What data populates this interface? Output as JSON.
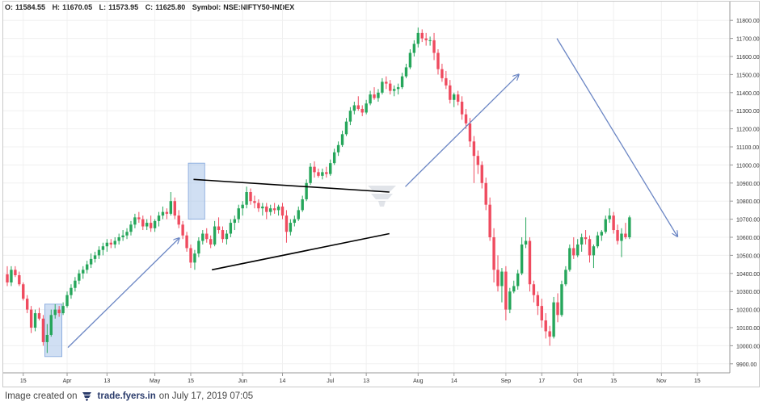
{
  "header": {
    "open_label": "O:",
    "open": "11584.55",
    "high_label": "H:",
    "high": "11670.05",
    "low_label": "L:",
    "low": "11573.95",
    "close_label": "C:",
    "close": "11625.80",
    "symbol_label": "Symbol:",
    "symbol": "NSE:NIFTY50-INDEX"
  },
  "footer": {
    "prefix": "Image created on",
    "brand": "trade.fyers.in",
    "suffix": "on July 17, 2019 07:05"
  },
  "colors": {
    "up": "#26a65b",
    "down": "#ef4b5f",
    "arrow": "#6b86c4",
    "trendline": "#000000",
    "highlight": "#a9c4ea"
  },
  "chart_data": {
    "type": "candlestick",
    "title": "",
    "xlabel": "",
    "ylabel": "",
    "ylim": [
      9850,
      11850
    ],
    "y_ticks": [
      "11800.00",
      "11700.00",
      "11600.00",
      "11500.00",
      "11400.00",
      "11300.00",
      "11200.00",
      "11100.00",
      "11000.00",
      "10900.00",
      "10800.00",
      "10700.00",
      "10600.00",
      "10500.00",
      "10400.00",
      "10300.00",
      "10200.00",
      "10100.00",
      "10000.00",
      "9900.00"
    ],
    "x_ticks": [
      {
        "label": "15",
        "i": 4
      },
      {
        "label": "Apr",
        "i": 15
      },
      {
        "label": "13",
        "i": 25
      },
      {
        "label": "May",
        "i": 37
      },
      {
        "label": "15",
        "i": 46
      },
      {
        "label": "Jun",
        "i": 59
      },
      {
        "label": "14",
        "i": 69
      },
      {
        "label": "Jul",
        "i": 81
      },
      {
        "label": "13",
        "i": 90
      },
      {
        "label": "Aug",
        "i": 103
      },
      {
        "label": "14",
        "i": 112
      },
      {
        "label": "Sep",
        "i": 125
      },
      {
        "label": "17",
        "i": 134
      },
      {
        "label": "Oct",
        "i": 143
      },
      {
        "label": "15",
        "i": 152
      },
      {
        "label": "Nov",
        "i": 164
      },
      {
        "label": "15",
        "i": 173
      }
    ],
    "candles": [
      [
        10395,
        10440,
        10330,
        10350
      ],
      [
        10350,
        10440,
        10330,
        10420
      ],
      [
        10420,
        10440,
        10380,
        10390
      ],
      [
        10390,
        10410,
        10330,
        10340
      ],
      [
        10340,
        10350,
        10250,
        10260
      ],
      [
        10260,
        10280,
        10180,
        10200
      ],
      [
        10200,
        10220,
        10070,
        10100
      ],
      [
        10100,
        10200,
        10080,
        10180
      ],
      [
        10180,
        10210,
        10140,
        10150
      ],
      [
        10150,
        10170,
        10000,
        10020
      ],
      [
        10020,
        10120,
        9960,
        10060
      ],
      [
        10060,
        10200,
        10050,
        10170
      ],
      [
        10170,
        10230,
        10150,
        10200
      ],
      [
        10200,
        10220,
        10160,
        10180
      ],
      [
        10180,
        10240,
        10170,
        10220
      ],
      [
        10220,
        10300,
        10210,
        10280
      ],
      [
        10280,
        10340,
        10260,
        10320
      ],
      [
        10320,
        10380,
        10300,
        10360
      ],
      [
        10360,
        10420,
        10340,
        10400
      ],
      [
        10400,
        10440,
        10370,
        10420
      ],
      [
        10420,
        10470,
        10400,
        10450
      ],
      [
        10450,
        10510,
        10430,
        10480
      ],
      [
        10480,
        10520,
        10460,
        10500
      ],
      [
        10500,
        10550,
        10480,
        10530
      ],
      [
        10530,
        10570,
        10500,
        10550
      ],
      [
        10550,
        10590,
        10520,
        10570
      ],
      [
        10570,
        10590,
        10540,
        10560
      ],
      [
        10560,
        10600,
        10540,
        10580
      ],
      [
        10580,
        10620,
        10560,
        10600
      ],
      [
        10600,
        10640,
        10580,
        10610
      ],
      [
        10610,
        10650,
        10590,
        10630
      ],
      [
        10630,
        10690,
        10610,
        10670
      ],
      [
        10670,
        10730,
        10650,
        10710
      ],
      [
        10710,
        10740,
        10680,
        10700
      ],
      [
        10700,
        10720,
        10640,
        10660
      ],
      [
        10660,
        10700,
        10640,
        10680
      ],
      [
        10680,
        10720,
        10630,
        10650
      ],
      [
        10650,
        10700,
        10630,
        10690
      ],
      [
        10690,
        10740,
        10660,
        10720
      ],
      [
        10720,
        10770,
        10700,
        10740
      ],
      [
        10740,
        10760,
        10700,
        10730
      ],
      [
        10730,
        10850,
        10720,
        10800
      ],
      [
        10800,
        10820,
        10700,
        10720
      ],
      [
        10720,
        10750,
        10650,
        10670
      ],
      [
        10670,
        10690,
        10590,
        10610
      ],
      [
        10610,
        10630,
        10520,
        10540
      ],
      [
        10540,
        10560,
        10430,
        10460
      ],
      [
        10460,
        10530,
        10420,
        10510
      ],
      [
        10510,
        10600,
        10490,
        10580
      ],
      [
        10580,
        10640,
        10560,
        10620
      ],
      [
        10620,
        10650,
        10570,
        10590
      ],
      [
        10590,
        10610,
        10540,
        10560
      ],
      [
        10560,
        10690,
        10550,
        10660
      ],
      [
        10660,
        10710,
        10620,
        10640
      ],
      [
        10640,
        10660,
        10570,
        10590
      ],
      [
        10590,
        10640,
        10560,
        10620
      ],
      [
        10620,
        10700,
        10600,
        10680
      ],
      [
        10680,
        10720,
        10640,
        10700
      ],
      [
        10700,
        10780,
        10680,
        10760
      ],
      [
        10760,
        10800,
        10720,
        10780
      ],
      [
        10780,
        10880,
        10760,
        10850
      ],
      [
        10850,
        10870,
        10780,
        10800
      ],
      [
        10800,
        10830,
        10760,
        10790
      ],
      [
        10790,
        10810,
        10740,
        10760
      ],
      [
        10760,
        10790,
        10720,
        10770
      ],
      [
        10770,
        10790,
        10700,
        10740
      ],
      [
        10740,
        10780,
        10720,
        10760
      ],
      [
        10760,
        10790,
        10730,
        10750
      ],
      [
        10750,
        10780,
        10720,
        10770
      ],
      [
        10770,
        10790,
        10700,
        10720
      ],
      [
        10720,
        10750,
        10570,
        10630
      ],
      [
        10630,
        10700,
        10610,
        10680
      ],
      [
        10680,
        10720,
        10660,
        10700
      ],
      [
        10700,
        10770,
        10690,
        10750
      ],
      [
        10750,
        10830,
        10740,
        10810
      ],
      [
        10810,
        10920,
        10800,
        10900
      ],
      [
        10900,
        11010,
        10890,
        10990
      ],
      [
        10990,
        11020,
        10930,
        10960
      ],
      [
        10960,
        10980,
        10930,
        10940
      ],
      [
        10940,
        10980,
        10920,
        10960
      ],
      [
        10960,
        10990,
        10930,
        10950
      ],
      [
        10950,
        11030,
        10940,
        11010
      ],
      [
        11010,
        11090,
        11000,
        11070
      ],
      [
        11070,
        11130,
        11050,
        11110
      ],
      [
        11110,
        11190,
        11100,
        11170
      ],
      [
        11170,
        11260,
        11160,
        11240
      ],
      [
        11240,
        11320,
        11220,
        11300
      ],
      [
        11300,
        11350,
        11280,
        11330
      ],
      [
        11330,
        11380,
        11300,
        11310
      ],
      [
        11310,
        11330,
        11270,
        11290
      ],
      [
        11290,
        11360,
        11280,
        11340
      ],
      [
        11340,
        11410,
        11330,
        11390
      ],
      [
        11390,
        11430,
        11360,
        11370
      ],
      [
        11370,
        11420,
        11350,
        11400
      ],
      [
        11400,
        11480,
        11390,
        11460
      ],
      [
        11460,
        11490,
        11420,
        11450
      ],
      [
        11450,
        11470,
        11390,
        11410
      ],
      [
        11410,
        11440,
        11380,
        11420
      ],
      [
        11420,
        11450,
        11390,
        11430
      ],
      [
        11430,
        11510,
        11420,
        11490
      ],
      [
        11490,
        11560,
        11480,
        11540
      ],
      [
        11540,
        11640,
        11530,
        11620
      ],
      [
        11620,
        11690,
        11600,
        11670
      ],
      [
        11670,
        11760,
        11650,
        11730
      ],
      [
        11730,
        11750,
        11680,
        11700
      ],
      [
        11700,
        11730,
        11660,
        11690
      ],
      [
        11690,
        11710,
        11660,
        11690
      ],
      [
        11690,
        11730,
        11580,
        11620
      ],
      [
        11620,
        11640,
        11500,
        11530
      ],
      [
        11530,
        11560,
        11460,
        11480
      ],
      [
        11480,
        11520,
        11420,
        11440
      ],
      [
        11440,
        11470,
        11340,
        11360
      ],
      [
        11360,
        11400,
        11320,
        11390
      ],
      [
        11390,
        11410,
        11330,
        11350
      ],
      [
        11350,
        11380,
        11250,
        11280
      ],
      [
        11280,
        11310,
        11200,
        11230
      ],
      [
        11230,
        11260,
        11100,
        11130
      ],
      [
        11130,
        11160,
        10900,
        11050
      ],
      [
        11050,
        11080,
        10950,
        11000
      ],
      [
        11000,
        11020,
        10870,
        10900
      ],
      [
        10900,
        10930,
        10750,
        10780
      ],
      [
        10780,
        10820,
        10580,
        10600
      ],
      [
        10600,
        10650,
        10350,
        10420
      ],
      [
        10420,
        10500,
        10300,
        10330
      ],
      [
        10330,
        10430,
        10240,
        10410
      ],
      [
        10410,
        10440,
        10140,
        10200
      ],
      [
        10200,
        10320,
        10180,
        10300
      ],
      [
        10300,
        10360,
        10290,
        10330
      ],
      [
        10330,
        10420,
        10310,
        10400
      ],
      [
        10400,
        10600,
        10390,
        10560
      ],
      [
        10560,
        10710,
        10540,
        10580
      ],
      [
        10580,
        10600,
        10300,
        10340
      ],
      [
        10340,
        10360,
        10240,
        10280
      ],
      [
        10280,
        10300,
        10170,
        10220
      ],
      [
        10220,
        10260,
        10100,
        10140
      ],
      [
        10140,
        10180,
        10040,
        10080
      ],
      [
        10080,
        10110,
        10000,
        10050
      ],
      [
        10050,
        10270,
        10040,
        10240
      ],
      [
        10240,
        10290,
        10130,
        10170
      ],
      [
        10170,
        10360,
        10160,
        10340
      ],
      [
        10340,
        10440,
        10330,
        10420
      ],
      [
        10420,
        10560,
        10410,
        10540
      ],
      [
        10540,
        10600,
        10480,
        10500
      ],
      [
        10500,
        10590,
        10490,
        10560
      ],
      [
        10560,
        10620,
        10520,
        10600
      ],
      [
        10600,
        10640,
        10560,
        10590
      ],
      [
        10590,
        10610,
        10460,
        10500
      ],
      [
        10500,
        10560,
        10430,
        10550
      ],
      [
        10550,
        10630,
        10540,
        10610
      ],
      [
        10610,
        10640,
        10580,
        10630
      ],
      [
        10630,
        10720,
        10620,
        10700
      ],
      [
        10700,
        10760,
        10680,
        10720
      ],
      [
        10720,
        10740,
        10620,
        10640
      ],
      [
        10640,
        10670,
        10560,
        10580
      ],
      [
        10580,
        10650,
        10490,
        10620
      ],
      [
        10620,
        10680,
        10590,
        10600
      ],
      [
        10600,
        10720,
        10590,
        10710
      ]
    ],
    "annotations": {
      "trend_lines": [
        {
          "x1": 46.7,
          "y1": 10920,
          "x2": 95.8,
          "y2": 10850
        },
        {
          "x1": 51.3,
          "y1": 10420,
          "x2": 95.8,
          "y2": 10620
        }
      ],
      "arrows": [
        {
          "x1": 15.2,
          "y1": 9990,
          "x2": 43.1,
          "y2": 10595
        },
        {
          "x1": 99.8,
          "y1": 10880,
          "x2": 128.2,
          "y2": 11500
        },
        {
          "x1": 137.8,
          "y1": 11700,
          "x2": 168.0,
          "y2": 10605
        }
      ],
      "highlight_boxes": [
        {
          "x1": 9.4,
          "x2": 13.7,
          "y1": 9940,
          "y2": 10230
        },
        {
          "x1": 45.4,
          "x2": 49.5,
          "y1": 10700,
          "y2": 11010
        }
      ]
    }
  }
}
